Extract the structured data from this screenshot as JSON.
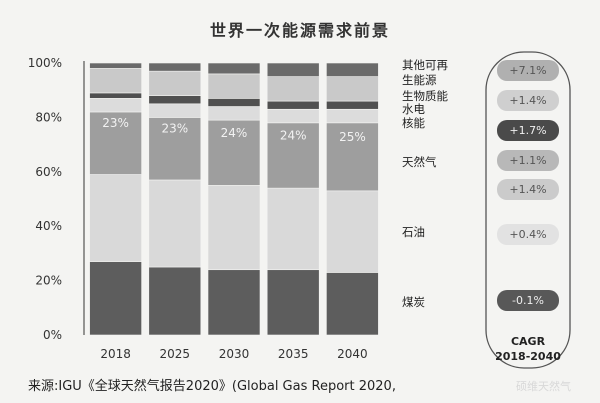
{
  "chart_data": {
    "type": "bar",
    "stacked": true,
    "title": "世界一次能源需求前景",
    "categories": [
      "2018",
      "2025",
      "2030",
      "2035",
      "2040"
    ],
    "yticks": [
      "0%",
      "20%",
      "40%",
      "60%",
      "80%",
      "100%"
    ],
    "ylim": [
      0,
      100
    ],
    "series": [
      {
        "name": "煤炭",
        "values": [
          27,
          25,
          24,
          24,
          23
        ],
        "color": "#5d5d5d"
      },
      {
        "name": "石油",
        "values": [
          32,
          32,
          31,
          30,
          30
        ],
        "color": "#d9d9d9"
      },
      {
        "name": "天然气",
        "values": [
          23,
          23,
          24,
          24,
          25
        ],
        "color": "#9e9e9e",
        "data_labels": [
          "23%",
          "23%",
          "24%",
          "24%",
          "25%"
        ]
      },
      {
        "name": "核能",
        "values": [
          5,
          5,
          5,
          5,
          5
        ],
        "color": "#dcdcdc"
      },
      {
        "name": "水电",
        "values": [
          2,
          3,
          3,
          3,
          3
        ],
        "color": "#505050"
      },
      {
        "name": "生物质能",
        "values": [
          9,
          9,
          9,
          9,
          9
        ],
        "color": "#c9c9c9"
      },
      {
        "name": "其他可再生能源",
        "values": [
          2,
          3,
          4,
          5,
          5
        ],
        "color": "#6a6a6a"
      }
    ],
    "legend": {
      "placement": "right",
      "labels": [
        "其他可再",
        "生能源",
        "生物质能",
        "水电",
        "核能",
        "天然气",
        "石油",
        "煤炭"
      ]
    },
    "cagr": {
      "title_line1": "CAGR",
      "title_line2": "2018-2040",
      "values": [
        {
          "label": "+7.1%",
          "color": "#b0b0b0"
        },
        {
          "label": "+1.4%",
          "color": "#cfcfcf"
        },
        {
          "label": "+1.7%",
          "color": "#4a4a4a"
        },
        {
          "label": "+1.1%",
          "color": "#b8b8b8"
        },
        {
          "label": "+1.4%",
          "color": "#cbcbcb"
        },
        {
          "label": "+0.4%",
          "color": "#e2e2e2"
        },
        {
          "label": "-0.1%",
          "color": "#585858"
        }
      ]
    }
  },
  "source": "来源:IGU《全球天然气报告2020》(Global Gas Report 2020,",
  "watermark": "硕维天然气"
}
